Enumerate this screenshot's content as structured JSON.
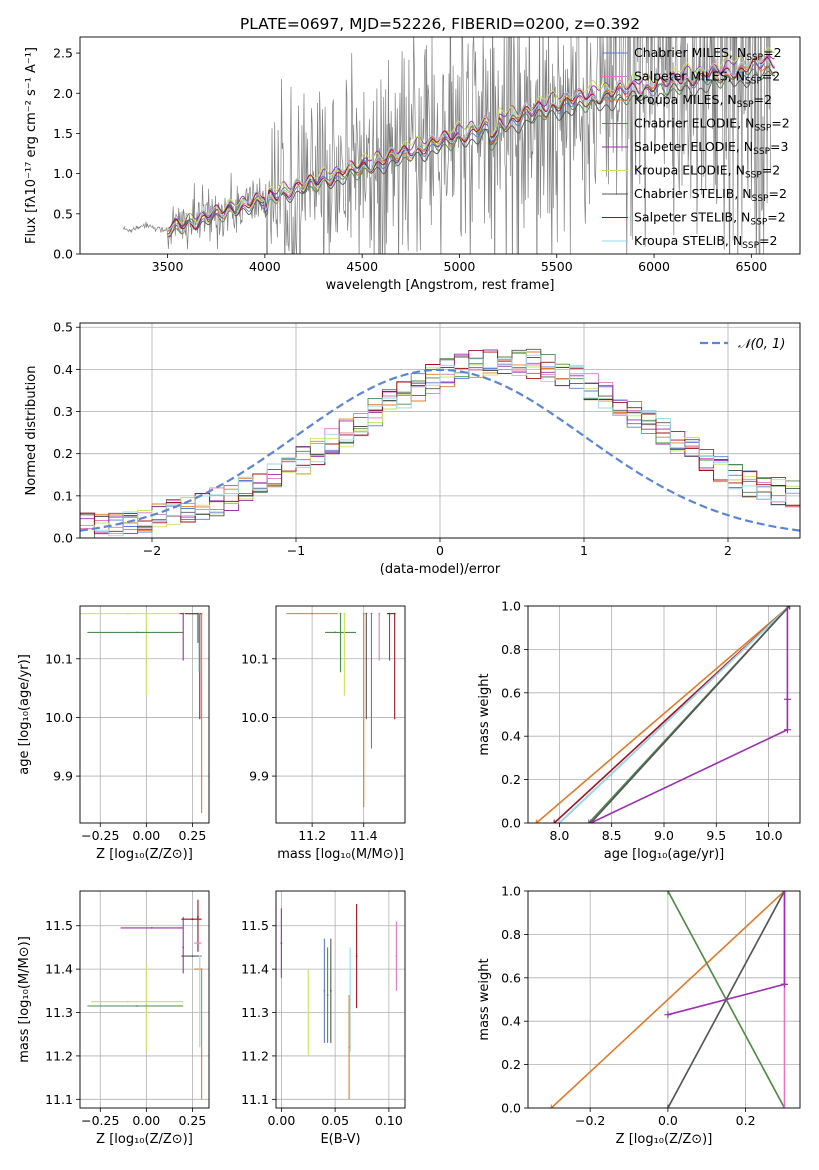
{
  "title": "PLATE=0697, MJD=52226, FIBERID=0200, z=0.392",
  "colors": {
    "chabrier_miles": "#5b7bd6",
    "salpeter_miles": "#e377c2",
    "kroupa_miles": "#e07b29",
    "chabrier_elodie": "#4f8a4f",
    "salpeter_elodie": "#9b2fae",
    "kroupa_elodie": "#c8e35a",
    "chabrier_stelib": "#555555",
    "salpeter_stelib": "#a0141e",
    "kroupa_stelib": "#9ad8e8",
    "data": "#808080",
    "normal": "#5b86d6"
  },
  "chart_data": [
    {
      "type": "line",
      "id": "spectrum",
      "xlabel": "wavelength [Angstrom, rest frame]",
      "ylabel": "Flux [fλ10⁻¹⁷ erg cm⁻² s⁻¹ A⁻¹]",
      "xlim": [
        3050,
        6750
      ],
      "ylim": [
        0,
        2.7
      ],
      "xticks": [
        3500,
        4000,
        4500,
        5000,
        5500,
        6000,
        6500
      ],
      "yticks": [
        0.0,
        0.5,
        1.0,
        1.5,
        2.0,
        2.5
      ],
      "legend_position": "top-right",
      "data_series": "observed spectrum (gray)",
      "series": [
        {
          "name": "Chabrier MILES, N",
          "sub": "SSP",
          "suffix": "=2",
          "color_key": "chabrier_miles"
        },
        {
          "name": "Salpeter MILES, N",
          "sub": "SSP",
          "suffix": "=2",
          "color_key": "salpeter_miles"
        },
        {
          "name": "Kroupa MILES, N",
          "sub": "SSP",
          "suffix": "=2",
          "color_key": "kroupa_miles"
        },
        {
          "name": "Chabrier ELODIE, N",
          "sub": "SSP",
          "suffix": "=2",
          "color_key": "chabrier_elodie"
        },
        {
          "name": "Salpeter ELODIE, N",
          "sub": "SSP",
          "suffix": "=3",
          "color_key": "salpeter_elodie"
        },
        {
          "name": "Kroupa ELODIE, N",
          "sub": "SSP",
          "suffix": "=2",
          "color_key": "kroupa_elodie"
        },
        {
          "name": "Chabrier STELIB, N",
          "sub": "SSP",
          "suffix": "=2",
          "color_key": "chabrier_stelib"
        },
        {
          "name": "Salpeter STELIB, N",
          "sub": "SSP",
          "suffix": "=2",
          "color_key": "salpeter_stelib"
        },
        {
          "name": "Kroupa STELIB, N",
          "sub": "SSP",
          "suffix": "=2",
          "color_key": "kroupa_stelib"
        }
      ]
    },
    {
      "type": "histogram",
      "id": "residuals",
      "xlabel": "(data-model)/error",
      "ylabel": "Normed distribution",
      "xlim": [
        -2.5,
        2.5
      ],
      "ylim": [
        0,
        0.51
      ],
      "xticks": [
        -2,
        -1,
        0,
        1,
        2
      ],
      "yticks": [
        0.0,
        0.1,
        0.2,
        0.3,
        0.4,
        0.5
      ],
      "legend": "𝒩(0, 1)",
      "legend_position": "top-right",
      "normal_curve": {
        "mean": 0,
        "sigma": 1
      }
    },
    {
      "type": "scatter",
      "id": "age_vs_Z",
      "xlabel": "Z [log₁₀(Z/Z⊙)]",
      "ylabel": "age  [log₁₀(age/yr)]",
      "xlim": [
        -0.36,
        0.34
      ],
      "ylim": [
        9.82,
        10.19
      ],
      "xticks": [
        -0.25,
        0.0,
        0.25
      ],
      "yticks": [
        9.9,
        10.0,
        10.1
      ],
      "points": [
        {
          "x": -0.1,
          "y": 10.177,
          "xerr": [
            0.3,
            0.4
          ],
          "yerr": [
            0.0,
            0.0
          ],
          "color_key": "kroupa_elodie"
        },
        {
          "x": 0.0,
          "y": 10.177,
          "xerr": [
            0.0,
            0.0
          ],
          "yerr": [
            0.14,
            0.0
          ],
          "color_key": "kroupa_elodie"
        },
        {
          "x": -0.05,
          "y": 10.145,
          "xerr": [
            0.27,
            0.25
          ],
          "yerr": [
            0,
            0
          ],
          "color_key": "chabrier_elodie"
        },
        {
          "x": 0.2,
          "y": 10.177,
          "xerr": [
            0.02,
            0.0
          ],
          "yerr": [
            0.08,
            0.0
          ],
          "color_key": "salpeter_elodie"
        },
        {
          "x": 0.3,
          "y": 10.177,
          "xerr": [
            0.05,
            0.0
          ],
          "yerr": [
            0.34,
            0.0
          ],
          "color_key": "kroupa_miles"
        },
        {
          "x": 0.29,
          "y": 10.177,
          "xerr": [
            0.08,
            0.0
          ],
          "yerr": [
            0.18,
            0.0
          ],
          "color_key": "salpeter_stelib"
        },
        {
          "x": 0.285,
          "y": 10.177,
          "xerr": [
            0.0,
            0.0
          ],
          "yerr": [
            0.1,
            0.0
          ],
          "color_key": "kroupa_stelib"
        },
        {
          "x": 0.28,
          "y": 10.177,
          "xerr": [
            0.06,
            0.0
          ],
          "yerr": [
            0.05,
            0.0
          ],
          "color_key": "chabrier_stelib"
        }
      ]
    },
    {
      "type": "scatter",
      "id": "age_vs_mass",
      "xlabel": "mass [log₁₀(M/M⊙)]",
      "ylabel": "",
      "xlim": [
        11.06,
        11.56
      ],
      "ylim": [
        9.82,
        10.19
      ],
      "xticks": [
        11.2,
        11.4
      ],
      "yticks": [
        9.9,
        10.0,
        10.1
      ],
      "points": [
        {
          "x": 11.2,
          "y": 10.177,
          "xerr": [
            0.1,
            0.1
          ],
          "yerr": [
            0,
            0
          ],
          "color_key": "kroupa_miles"
        },
        {
          "x": 11.29,
          "y": 10.145,
          "xerr": [
            0.04,
            0.08
          ],
          "yerr": [
            0,
            0
          ],
          "color_key": "chabrier_elodie"
        },
        {
          "x": 11.31,
          "y": 10.177,
          "xerr": [
            0.0,
            0.0
          ],
          "yerr": [
            0.1,
            0.0
          ],
          "color_key": "chabrier_elodie"
        },
        {
          "x": 11.325,
          "y": 10.177,
          "xerr": [
            0.0,
            0.0
          ],
          "yerr": [
            0.14,
            0.0
          ],
          "color_key": "kroupa_elodie"
        },
        {
          "x": 11.4,
          "y": 10.177,
          "xerr": [
            0.0,
            0.0
          ],
          "yerr": [
            0.33,
            0.0
          ],
          "color_key": "kroupa_miles"
        },
        {
          "x": 11.41,
          "y": 10.177,
          "xerr": [
            0.0,
            0.0
          ],
          "yerr": [
            0.18,
            0.0
          ],
          "color_key": "chabrier_stelib"
        },
        {
          "x": 11.43,
          "y": 10.177,
          "xerr": [
            0.0,
            0.0
          ],
          "yerr": [
            0.23,
            0.0
          ],
          "color_key": "chabrier_miles"
        },
        {
          "x": 11.46,
          "y": 10.177,
          "xerr": [
            0.0,
            0.0
          ],
          "yerr": [
            0.08,
            0.0
          ],
          "color_key": "salpeter_miles"
        },
        {
          "x": 11.5,
          "y": 10.177,
          "xerr": [
            0.0,
            0.0
          ],
          "yerr": [
            0.08,
            0.0
          ],
          "color_key": "salpeter_elodie"
        },
        {
          "x": 11.52,
          "y": 10.177,
          "xerr": [
            0.03,
            0.0
          ],
          "yerr": [
            0.18,
            0.0
          ],
          "color_key": "salpeter_stelib"
        }
      ]
    },
    {
      "type": "line",
      "id": "cumulative_mass_vs_age",
      "xlabel": "age  [log₁₀(age/yr)]",
      "ylabel": "mass weight",
      "xlim": [
        7.7,
        10.3
      ],
      "ylim": [
        0,
        1.0
      ],
      "xticks": [
        8.0,
        8.5,
        9.0,
        9.5,
        10.0
      ],
      "yticks": [
        0.0,
        0.2,
        0.4,
        0.6,
        0.8,
        1.0
      ],
      "series": [
        {
          "color_key": "kroupa_miles",
          "x": [
            7.78,
            10.2
          ],
          "y": [
            0,
            1.0
          ]
        },
        {
          "color_key": "salpeter_stelib",
          "x": [
            7.95,
            10.2
          ],
          "y": [
            0,
            1.0
          ]
        },
        {
          "color_key": "chabrier_miles",
          "x": [
            8.0,
            10.2
          ],
          "y": [
            0,
            1.0
          ]
        },
        {
          "color_key": "kroupa_stelib",
          "x": [
            8.0,
            10.2
          ],
          "y": [
            0,
            1.0
          ]
        },
        {
          "color_key": "chabrier_elodie",
          "x": [
            8.28,
            10.2
          ],
          "y": [
            0,
            1.0
          ]
        },
        {
          "color_key": "chabrier_stelib",
          "x": [
            8.3,
            10.2
          ],
          "y": [
            0,
            1.0
          ]
        },
        {
          "color_key": "salpeter_elodie",
          "x": [
            8.3,
            10.18,
            10.18,
            10.18
          ],
          "y": [
            0,
            0.43,
            0.57,
            1.0
          ]
        }
      ]
    },
    {
      "type": "scatter",
      "id": "mass_vs_Z",
      "xlabel": "Z [log₁₀(Z/Z⊙)]",
      "ylabel": "mass [log₁₀(M/M⊙)]",
      "xlim": [
        -0.36,
        0.34
      ],
      "ylim": [
        11.08,
        11.58
      ],
      "xticks": [
        -0.25,
        0.0,
        0.25
      ],
      "yticks": [
        11.1,
        11.2,
        11.3,
        11.4,
        11.5
      ],
      "points": [
        {
          "x": -0.1,
          "y": 11.325,
          "xerr": [
            0.2,
            0.3
          ],
          "yerr": [
            0,
            0
          ],
          "color_key": "kroupa_elodie"
        },
        {
          "x": 0.0,
          "y": 11.31,
          "xerr": [
            0.0,
            0.0
          ],
          "yerr": [
            0.1,
            0.1
          ],
          "color_key": "kroupa_elodie"
        },
        {
          "x": -0.05,
          "y": 11.315,
          "xerr": [
            0.27,
            0.25
          ],
          "yerr": [
            0,
            0
          ],
          "color_key": "chabrier_elodie"
        },
        {
          "x": 0.03,
          "y": 11.495,
          "xerr": [
            0.17,
            0.17
          ],
          "yerr": [
            0,
            0
          ],
          "color_key": "salpeter_elodie"
        },
        {
          "x": 0.2,
          "y": 11.45,
          "xerr": [
            0.0,
            0.0
          ],
          "yerr": [
            0.06,
            0.07
          ],
          "color_key": "salpeter_elodie"
        },
        {
          "x": 0.25,
          "y": 11.515,
          "xerr": [
            0.06,
            0.05
          ],
          "yerr": [
            0,
            0
          ],
          "color_key": "salpeter_stelib"
        },
        {
          "x": 0.28,
          "y": 11.52,
          "xerr": [
            0.0,
            0.0
          ],
          "yerr": [
            0.08,
            0.04
          ],
          "color_key": "salpeter_stelib"
        },
        {
          "x": 0.28,
          "y": 11.46,
          "xerr": [
            0.02,
            0.02
          ],
          "yerr": [
            0,
            0
          ],
          "color_key": "salpeter_miles"
        },
        {
          "x": 0.3,
          "y": 11.4,
          "xerr": [
            0.04,
            0.0
          ],
          "yerr": [
            0.3,
            0.0
          ],
          "color_key": "kroupa_miles"
        },
        {
          "x": 0.25,
          "y": 11.43,
          "xerr": [
            0.06,
            0.05
          ],
          "yerr": [
            0,
            0
          ],
          "color_key": "chabrier_stelib"
        },
        {
          "x": 0.29,
          "y": 11.43,
          "xerr": [
            0.0,
            0.0
          ],
          "yerr": [
            0.21,
            0.0
          ],
          "color_key": "kroupa_stelib"
        }
      ]
    },
    {
      "type": "scatter",
      "id": "mass_vs_ebv",
      "xlabel": "E(B-V)",
      "ylabel": "",
      "xlim": [
        -0.005,
        0.115
      ],
      "ylim": [
        11.08,
        11.58
      ],
      "xticks": [
        0.0,
        0.05,
        0.1
      ],
      "yticks": [
        11.1,
        11.2,
        11.3,
        11.4,
        11.5
      ],
      "points": [
        {
          "x": 0.0,
          "y": 11.46,
          "xerr": [
            0,
            0
          ],
          "yerr": [
            0.08,
            0.08
          ],
          "color_key": "salpeter_elodie"
        },
        {
          "x": 0.025,
          "y": 11.3,
          "xerr": [
            0,
            0
          ],
          "yerr": [
            0.1,
            0.1
          ],
          "color_key": "kroupa_elodie"
        },
        {
          "x": 0.04,
          "y": 11.35,
          "xerr": [
            0,
            0
          ],
          "yerr": [
            0.12,
            0.12
          ],
          "color_key": "chabrier_miles"
        },
        {
          "x": 0.043,
          "y": 11.34,
          "xerr": [
            0,
            0
          ],
          "yerr": [
            0.11,
            0.11
          ],
          "color_key": "chabrier_elodie"
        },
        {
          "x": 0.046,
          "y": 11.35,
          "xerr": [
            0,
            0
          ],
          "yerr": [
            0.12,
            0.12
          ],
          "color_key": "chabrier_stelib"
        },
        {
          "x": 0.063,
          "y": 11.22,
          "xerr": [
            0,
            0
          ],
          "yerr": [
            0.12,
            0.12
          ],
          "color_key": "kroupa_miles"
        },
        {
          "x": 0.064,
          "y": 11.33,
          "xerr": [
            0,
            0
          ],
          "yerr": [
            0.12,
            0.12
          ],
          "color_key": "kroupa_stelib"
        },
        {
          "x": 0.07,
          "y": 11.43,
          "xerr": [
            0,
            0
          ],
          "yerr": [
            0.12,
            0.12
          ],
          "color_key": "salpeter_stelib"
        },
        {
          "x": 0.107,
          "y": 11.43,
          "xerr": [
            0,
            0
          ],
          "yerr": [
            0.08,
            0.08
          ],
          "color_key": "salpeter_miles"
        }
      ]
    },
    {
      "type": "line",
      "id": "cumulative_mass_vs_Z",
      "xlabel": "Z [log₁₀(Z/Z⊙)]",
      "ylabel": "mass weight",
      "xlim": [
        -0.36,
        0.34
      ],
      "ylim": [
        0,
        1.0
      ],
      "xticks": [
        -0.2,
        0.0,
        0.2
      ],
      "yticks": [
        0.0,
        0.2,
        0.4,
        0.6,
        0.8,
        1.0
      ],
      "series": [
        {
          "color_key": "kroupa_miles",
          "x": [
            -0.3,
            0.3
          ],
          "y": [
            0,
            1.0
          ]
        },
        {
          "color_key": "kroupa_elodie",
          "x": [
            0.0,
            0.3
          ],
          "y": [
            1.0,
            0
          ]
        },
        {
          "color_key": "chabrier_elodie",
          "x": [
            0.0,
            0.3
          ],
          "y": [
            1.0,
            0
          ]
        },
        {
          "color_key": "kroupa_stelib",
          "x": [
            0.0,
            0.3
          ],
          "y": [
            0,
            1.0
          ]
        },
        {
          "color_key": "chabrier_stelib",
          "x": [
            0.0,
            0.3
          ],
          "y": [
            0,
            1.0
          ]
        },
        {
          "color_key": "salpeter_miles",
          "x": [
            0.3,
            0.3
          ],
          "y": [
            0,
            1.0
          ]
        },
        {
          "color_key": "salpeter_elodie",
          "x": [
            0.0,
            0.3,
            0.3,
            0.3
          ],
          "y": [
            0.43,
            0.57,
            0.57,
            1.0
          ]
        }
      ]
    }
  ]
}
